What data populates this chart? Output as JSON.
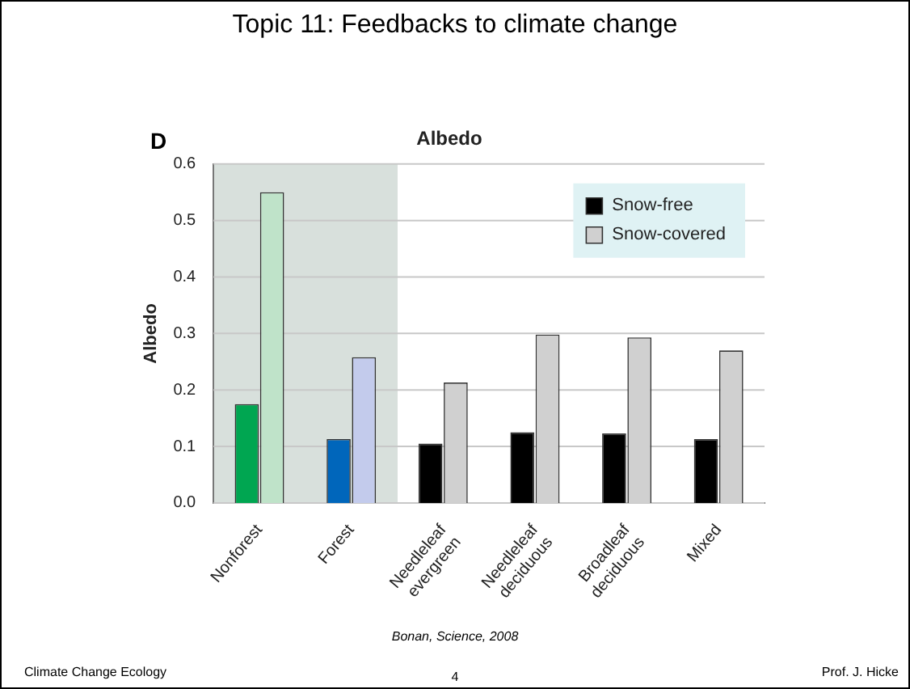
{
  "chart_data": {
    "type": "bar",
    "title": "Topic 11:  Feedbacks to climate change",
    "subtitle": "Albedo",
    "ylabel": "Albedo",
    "categories": [
      "Nonforest",
      "Forest",
      "Needleleaf evergreen",
      "Needleleaf deciduous",
      "Broadleaf deciduous",
      "Mixed"
    ],
    "series": [
      {
        "name": "Snow-free",
        "color": "#000000",
        "colors": [
          "#00a651",
          "#0066bb",
          "#000000",
          "#000000",
          "#000000",
          "#000000"
        ],
        "values": [
          0.175,
          0.113,
          0.105,
          0.125,
          0.123,
          0.113
        ]
      },
      {
        "name": "Snow-covered",
        "color": "#d0d0d0",
        "colors": [
          "#bfe3c9",
          "#c3cbec",
          "#d0d0d0",
          "#d0d0d0",
          "#d0d0d0",
          "#d0d0d0"
        ],
        "values": [
          0.55,
          0.258,
          0.213,
          0.298,
          0.293,
          0.27
        ]
      }
    ],
    "ylim": [
      0,
      0.6
    ],
    "yticks": [
      {
        "value": 0,
        "label": "0.0"
      },
      {
        "value": 0.1,
        "label": "0.1"
      },
      {
        "value": 0.2,
        "label": "0.2"
      },
      {
        "value": 0.3,
        "label": "0.3"
      },
      {
        "value": 0.4,
        "label": "0.4"
      },
      {
        "value": 0.5,
        "label": "0.5"
      },
      {
        "value": 0.6,
        "label": "0.6"
      }
    ],
    "grid": "y",
    "legend": "top right",
    "annotations": [
      "D",
      "Bonan, Science, 2008",
      "Climate Change Ecology",
      "4",
      "Prof. J. Hicke"
    ]
  }
}
